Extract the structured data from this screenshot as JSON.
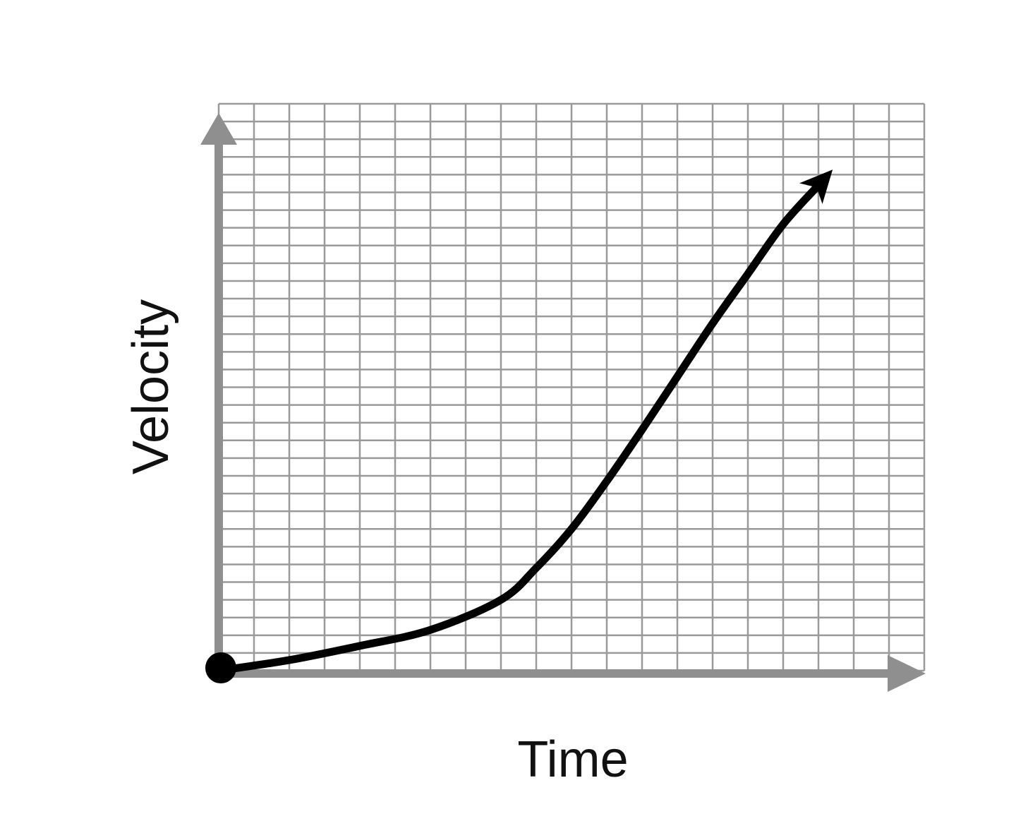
{
  "chart_data": {
    "type": "line",
    "title": "",
    "xlabel": "Time",
    "ylabel": "Velocity",
    "grid": true,
    "xlim": [
      0,
      20
    ],
    "ylim": [
      0,
      32
    ],
    "series": [
      {
        "x": [
          0,
          2,
          4,
          6,
          8,
          9,
          10,
          11,
          12,
          13,
          14,
          15,
          16,
          17
        ],
        "y": [
          0,
          0.6,
          1.4,
          2.3,
          4.0,
          5.8,
          8.0,
          10.7,
          13.6,
          16.6,
          19.6,
          22.4,
          25.2,
          27.4
        ],
        "start_marker": "dot",
        "end_marker": "arrow"
      }
    ],
    "colors": {
      "grid": "#9a9a9a",
      "axis": "#8f8f8f",
      "curve": "#000000",
      "label": "#111111"
    }
  }
}
